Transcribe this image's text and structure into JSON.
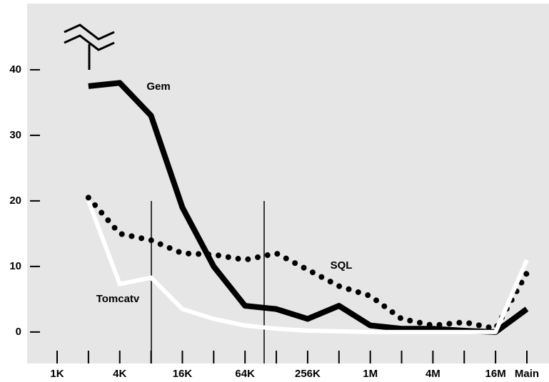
{
  "chart_data": {
    "type": "line",
    "categories": [
      "1K",
      null,
      "4K",
      null,
      "16K",
      null,
      "64K",
      null,
      "256K",
      null,
      "1M",
      null,
      "4M",
      null,
      "16M",
      "Main"
    ],
    "series": [
      {
        "name": "Gem",
        "color": "#000000",
        "style": "solid",
        "values": [
          null,
          37.5,
          38,
          33,
          19,
          10,
          4,
          3.5,
          2,
          4,
          1,
          0.5,
          0.5,
          0.2,
          0,
          3.5
        ]
      },
      {
        "name": "SQL",
        "color": "#000000",
        "style": "dotted",
        "values": [
          null,
          20.5,
          15,
          14,
          12,
          11.8,
          11,
          12,
          9.5,
          7,
          5.5,
          2,
          1,
          1.5,
          0.5,
          9
        ]
      },
      {
        "name": "Tomcatv",
        "color": "#ffffff",
        "style": "solid",
        "values": [
          null,
          20,
          7.3,
          8.3,
          3.5,
          2,
          1,
          0.5,
          0.2,
          0.1,
          0,
          0,
          0,
          0,
          0,
          11
        ]
      }
    ],
    "ylim": [
      -4.8,
      50.1
    ],
    "yticks": [
      0,
      10,
      20,
      30,
      40
    ],
    "grid": false
  }
}
